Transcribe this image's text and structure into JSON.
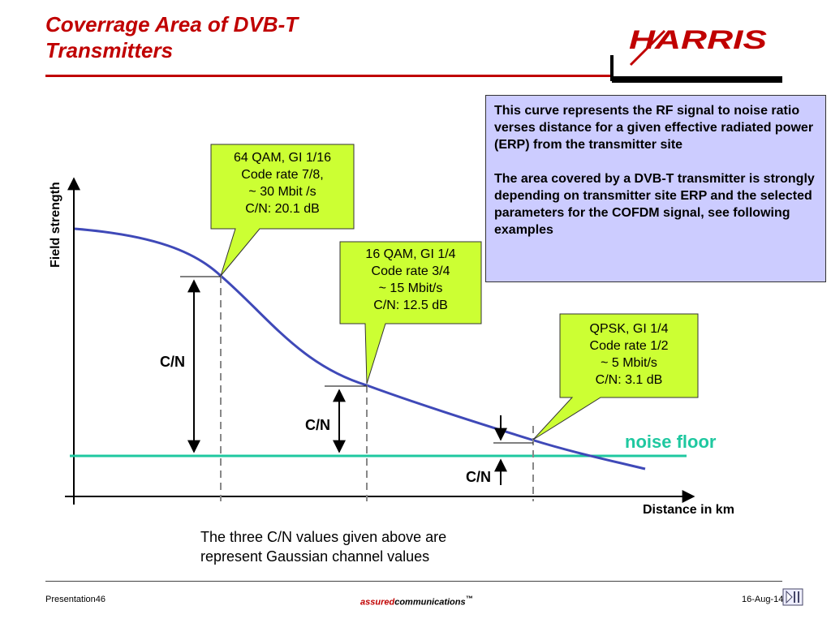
{
  "title": {
    "line1": "Coverrage Area of DVB-T",
    "line2": "Transmitters"
  },
  "logo": {
    "text": "HARRIS",
    "colors": {
      "text": "#c00000",
      "swoosh": "#c00000"
    }
  },
  "info_box": {
    "paragraph1": "This curve represents the RF signal to noise ratio  verses distance for a given effective radiated power (ERP) from the transmitter site",
    "paragraph2": "The area covered by a DVB-T transmitter is strongly depending on transmitter site ERP and the selected parameters for the COFDM signal, see following examples",
    "color": "#ccccff"
  },
  "callouts": [
    {
      "lines": [
        "64 QAM, GI 1/16",
        "Code rate 7/8,",
        "~ 30 Mbit /s",
        "C/N: 20.1 dB"
      ]
    },
    {
      "lines": [
        "16 QAM, GI 1/4",
        "Code rate 3/4",
        "~ 15 Mbit/s",
        "C/N: 12.5 dB"
      ]
    },
    {
      "lines": [
        "QPSK, GI 1/4",
        "Code rate 1/2",
        "~ 5 Mbit/s",
        "C/N: 3.1 dB"
      ]
    }
  ],
  "callout_color": "#ccff33",
  "cn_labels": [
    "C/N",
    "C/N",
    "C/N"
  ],
  "noise_floor": {
    "label": "noise floor",
    "color": "#1fc8a0"
  },
  "axes": {
    "x_label": "Distance in km",
    "y_label": "Field strength"
  },
  "curve_color": "#3f49b8",
  "note": {
    "line1": "The three C/N values given above are",
    "line2": "represent Gaussian channel values"
  },
  "footer": {
    "left": "Presentation46",
    "center_assured": "assured",
    "center_rest": "communications",
    "center_tm": "™",
    "right": "16-Aug-14"
  },
  "icons": {
    "nav": "presentation-nav-icon"
  }
}
